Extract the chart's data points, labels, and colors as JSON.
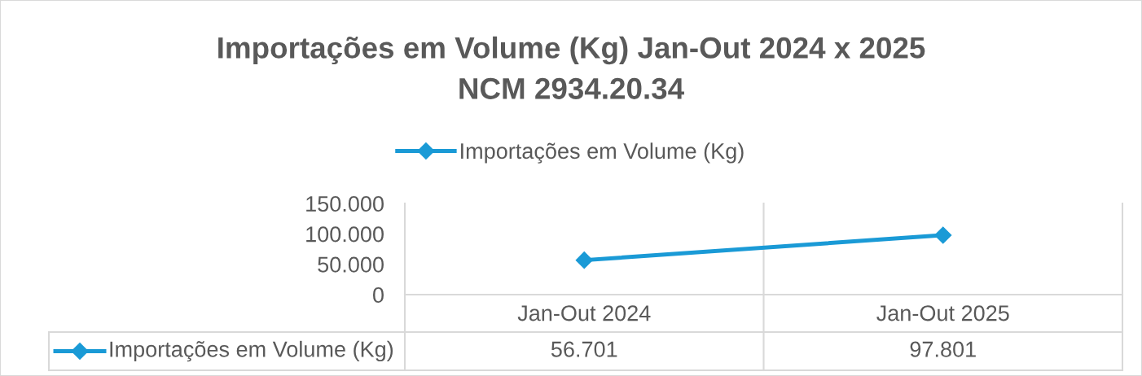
{
  "chart_data": {
    "type": "line",
    "title": "Importações em Volume (Kg) Jan-Out 2024 x 2025",
    "subtitle": "NCM 2934.20.34",
    "categories": [
      "Jan-Out 2024",
      "Jan-Out 2025"
    ],
    "series": [
      {
        "name": "Importações em Volume (Kg)",
        "color": "#1a9ad6",
        "values": [
          56701,
          97801
        ],
        "value_labels": [
          "56.701",
          "97.801"
        ]
      }
    ],
    "ylim": [
      0,
      150000
    ],
    "yticks": [
      0,
      {
        "value": 50000,
        "label": "50.000"
      },
      {
        "value": 100000,
        "label": "100.000"
      },
      {
        "value": 150000,
        "label": "150.000"
      }
    ],
    "grid": "x",
    "legend": "top",
    "marker": "diamond",
    "line_style": "solid"
  }
}
